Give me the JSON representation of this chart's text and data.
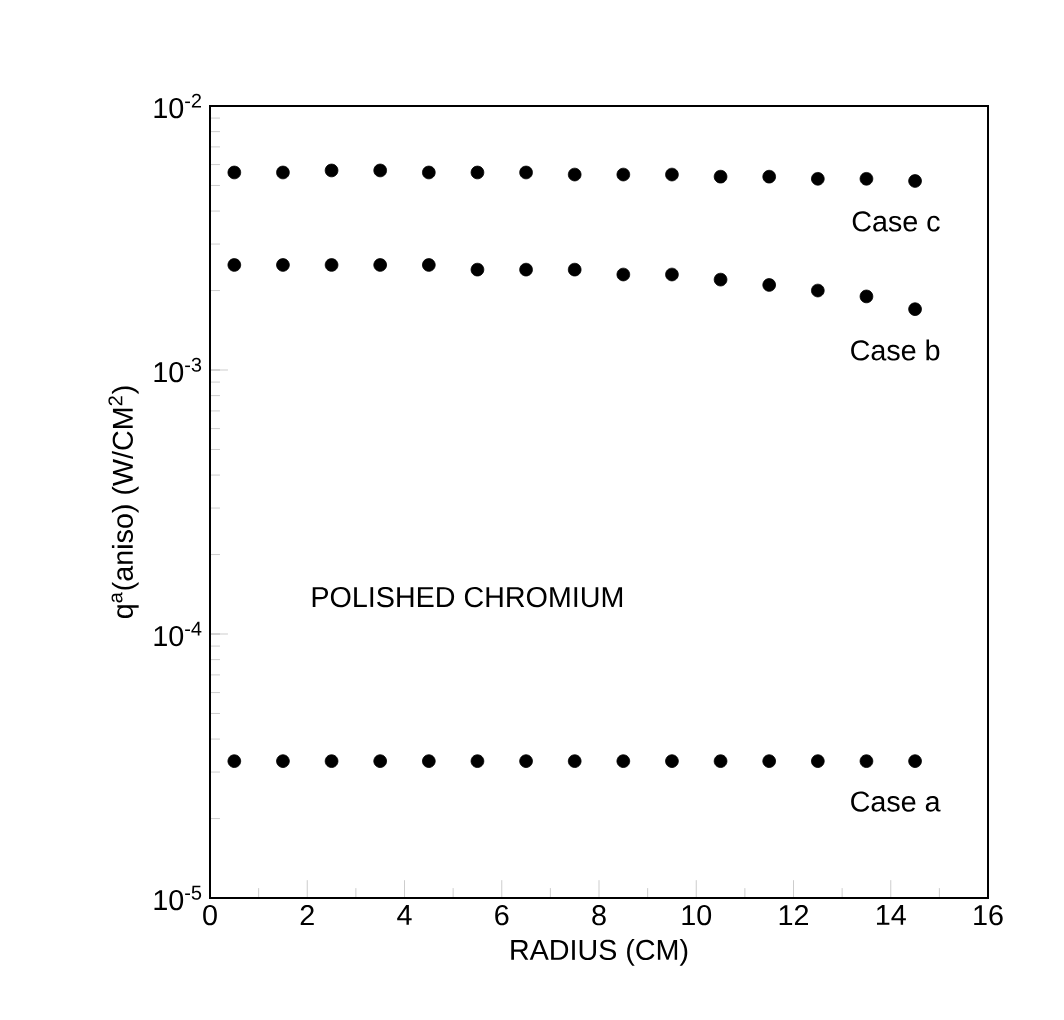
{
  "chart_data": {
    "type": "scatter",
    "xlabel": "RADIUS (CM)",
    "ylabel": "q$^{a}$(aniso) (W/CM$^{2}$)",
    "log": "y",
    "marker": "circle",
    "legend": false,
    "grid": false,
    "x": [
      0.5,
      1.5,
      2.5,
      3.5,
      4.5,
      5.5,
      6.5,
      7.5,
      8.5,
      9.5,
      10.5,
      11.5,
      12.5,
      13.5,
      14.5
    ],
    "xlim": [
      0,
      16
    ],
    "xticks": [
      0,
      2,
      4,
      6,
      8,
      10,
      12,
      14,
      16
    ],
    "ylim": [
      1e-05,
      0.01
    ],
    "yticks": [
      {
        "value": 1e-05,
        "label": "10$^{-5}$"
      },
      {
        "value": 0.0001,
        "label": "10$^{-4}$"
      },
      {
        "value": 0.001,
        "label": "10$^{-3}$"
      },
      {
        "value": 0.01,
        "label": "10$^{-2}$"
      }
    ],
    "series": [
      {
        "name": "Case c",
        "color": "#000000",
        "values": [
          0.0056,
          0.0056,
          0.0057,
          0.0057,
          0.0056,
          0.0056,
          0.0056,
          0.0055,
          0.0055,
          0.0055,
          0.0054,
          0.0054,
          0.0053,
          0.0053,
          0.0052
        ]
      },
      {
        "name": "Case b",
        "color": "#000000",
        "values": [
          0.0025,
          0.0025,
          0.0025,
          0.0025,
          0.0025,
          0.0024,
          0.0024,
          0.0024,
          0.0023,
          0.0023,
          0.0022,
          0.0021,
          0.002,
          0.0019,
          0.0017
        ]
      },
      {
        "name": "Case a",
        "color": "#000000",
        "values": [
          3.3e-05,
          3.3e-05,
          3.3e-05,
          3.3e-05,
          3.3e-05,
          3.3e-05,
          3.3e-05,
          3.3e-05,
          3.3e-05,
          3.3e-05,
          3.3e-05,
          3.3e-05,
          3.3e-05,
          3.3e-05,
          3.3e-05
        ]
      }
    ],
    "annotations": [
      "POLISHED CHROMIUM"
    ]
  }
}
